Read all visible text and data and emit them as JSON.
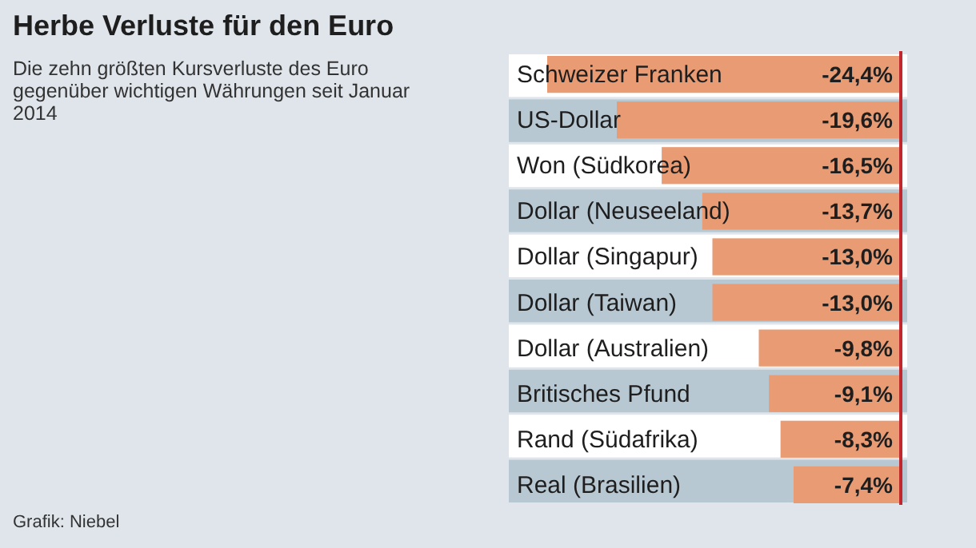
{
  "chart_data": {
    "type": "bar",
    "orientation": "horizontal",
    "title": "Herbe Verluste für den Euro",
    "subtitle": "Die zehn größten Kursverluste des Euro gegenüber wichtigen Währungen seit Januar 2014",
    "categories": [
      "Schweizer Franken",
      "US-Dollar",
      "Won (Südkorea)",
      "Dollar (Neuseeland)",
      "Dollar (Singapur)",
      "Dollar (Taiwan)",
      "Dollar (Australien)",
      "Britisches Pfund",
      "Rand (Südafrika)",
      "Real (Brasilien)"
    ],
    "values": [
      -24.4,
      -19.6,
      -16.5,
      -13.7,
      -13.0,
      -13.0,
      -9.8,
      -9.1,
      -8.3,
      -7.4
    ],
    "value_labels": [
      "-24,4%",
      "-19,6%",
      "-16,5%",
      "-13,7%",
      "-13,0%",
      "-13,0%",
      "-9,8%",
      "-9,1%",
      "-8,3%",
      "-7,4%"
    ],
    "color": "#e99b73",
    "ref_lines": [
      {
        "axis": "x",
        "value": 0,
        "color": "#c0282d"
      }
    ],
    "annotations": [
      "Grafik: Niebel"
    ]
  }
}
